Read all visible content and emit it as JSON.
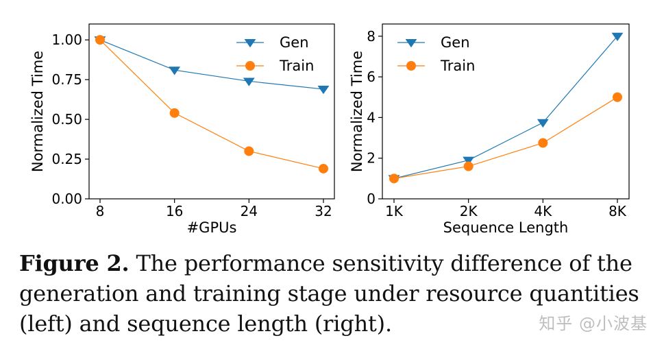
{
  "chart_data": [
    {
      "type": "line",
      "title": "",
      "xlabel": "#GPUs",
      "ylabel": "Normalized Time",
      "categories": [
        "8",
        "16",
        "24",
        "32"
      ],
      "ylim": [
        0,
        1.1
      ],
      "yticks": [
        0.0,
        0.25,
        0.5,
        0.75,
        1.0
      ],
      "ytick_labels": [
        "0.00",
        "0.25",
        "0.50",
        "0.75",
        "1.00"
      ],
      "legend": "top-right",
      "grid": false,
      "series": [
        {
          "name": "Gen",
          "values": [
            1.0,
            0.81,
            0.74,
            0.69
          ],
          "color": "#1f77b4",
          "marker": "triangle-down"
        },
        {
          "name": "Train",
          "values": [
            1.0,
            0.54,
            0.3,
            0.19
          ],
          "color": "#ff7f0e",
          "marker": "circle"
        }
      ]
    },
    {
      "type": "line",
      "title": "",
      "xlabel": "Sequence Length",
      "ylabel": "Normalized Time",
      "categories": [
        "1K",
        "2K",
        "4K",
        "8K"
      ],
      "ylim": [
        0,
        8.6
      ],
      "yticks": [
        0,
        2,
        4,
        6,
        8
      ],
      "ytick_labels": [
        "0",
        "2",
        "4",
        "6",
        "8"
      ],
      "legend": "top-left",
      "grid": false,
      "series": [
        {
          "name": "Gen",
          "values": [
            1.0,
            1.9,
            3.75,
            8.0
          ],
          "color": "#1f77b4",
          "marker": "triangle-down"
        },
        {
          "name": "Train",
          "values": [
            1.0,
            1.6,
            2.75,
            5.0
          ],
          "color": "#ff7f0e",
          "marker": "circle"
        }
      ]
    }
  ],
  "caption": {
    "label": "Figure 2.",
    "text": "The performance sensitivity difference of the generation and training stage under resource quantities (left) and sequence length (right)."
  },
  "watermark": "知乎 @小波基"
}
